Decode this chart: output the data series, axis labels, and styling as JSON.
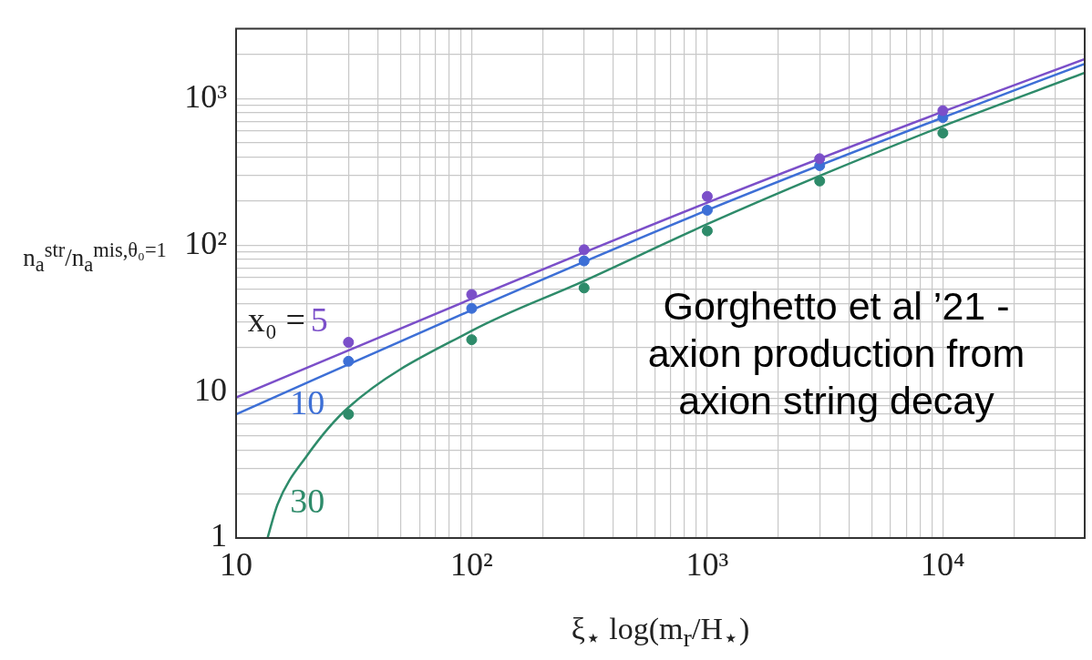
{
  "chart_data": {
    "type": "scatter",
    "xlabel": "ξ$_{⋆}$ log(m$_{r}$/H$_{⋆}$)",
    "ylabel": "n$_{a}$$^{str}$/n$_{a}$$^{mis,θ₀=1}$",
    "log": "xy",
    "grid": true,
    "legend": false,
    "marker": "circle",
    "xlim": [
      10,
      40000
    ],
    "ylim": [
      1,
      3000
    ],
    "xticks": [
      10,
      {
        "value": 20,
        "label": null
      },
      {
        "value": 30,
        "label": null
      },
      {
        "value": 40,
        "label": null
      },
      {
        "value": 50,
        "label": null
      },
      {
        "value": 60,
        "label": null
      },
      {
        "value": 70,
        "label": null
      },
      {
        "value": 80,
        "label": null
      },
      {
        "value": 90,
        "label": null
      },
      {
        "value": 100,
        "label": "10²"
      },
      {
        "value": 200,
        "label": null
      },
      {
        "value": 300,
        "label": null
      },
      {
        "value": 400,
        "label": null
      },
      {
        "value": 500,
        "label": null
      },
      {
        "value": 600,
        "label": null
      },
      {
        "value": 700,
        "label": null
      },
      {
        "value": 800,
        "label": null
      },
      {
        "value": 900,
        "label": null
      },
      {
        "value": 1000,
        "label": "10³"
      },
      {
        "value": 2000,
        "label": null
      },
      {
        "value": 3000,
        "label": null
      },
      {
        "value": 4000,
        "label": null
      },
      {
        "value": 5000,
        "label": null
      },
      {
        "value": 6000,
        "label": null
      },
      {
        "value": 7000,
        "label": null
      },
      {
        "value": 8000,
        "label": null
      },
      {
        "value": 9000,
        "label": null
      },
      {
        "value": 10000,
        "label": "10⁴"
      },
      {
        "value": 20000,
        "label": null
      },
      {
        "value": 30000,
        "label": null
      }
    ],
    "yticks": [
      1,
      {
        "value": 2,
        "label": null
      },
      {
        "value": 3,
        "label": null
      },
      {
        "value": 4,
        "label": null
      },
      {
        "value": 5,
        "label": null
      },
      {
        "value": 6,
        "label": null
      },
      {
        "value": 7,
        "label": null
      },
      {
        "value": 8,
        "label": null
      },
      {
        "value": 9,
        "label": null
      },
      10,
      {
        "value": 20,
        "label": null
      },
      {
        "value": 30,
        "label": null
      },
      {
        "value": 40,
        "label": null
      },
      {
        "value": 50,
        "label": null
      },
      {
        "value": 60,
        "label": null
      },
      {
        "value": 70,
        "label": null
      },
      {
        "value": 80,
        "label": null
      },
      {
        "value": 90,
        "label": null
      },
      {
        "value": 100,
        "label": "10²"
      },
      {
        "value": 200,
        "label": null
      },
      {
        "value": 300,
        "label": null
      },
      {
        "value": 400,
        "label": null
      },
      {
        "value": 500,
        "label": null
      },
      {
        "value": 600,
        "label": null
      },
      {
        "value": 700,
        "label": null
      },
      {
        "value": 800,
        "label": null
      },
      {
        "value": 900,
        "label": null
      },
      {
        "value": 1000,
        "label": "10³"
      },
      {
        "value": 2000,
        "label": null
      }
    ],
    "x": [
      30,
      100,
      300,
      1000,
      3000,
      10000
    ],
    "series": [
      {
        "type": "scatter",
        "color": "#7b4fc9",
        "values": [
          21.7,
          46,
          93,
          215,
          389,
          828
        ]
      },
      {
        "type": "scatter",
        "color": "#3d6fd6",
        "values": [
          16.1,
          37,
          78,
          173,
          349,
          743
        ]
      },
      {
        "type": "scatter",
        "color": "#2e8b6a",
        "values": [
          7.0,
          22.6,
          51,
          125,
          274,
          582
        ]
      },
      {
        "type": "line",
        "name": "5",
        "color": "#7b4fc9",
        "marker": "none",
        "x": [
          10,
          100,
          1000,
          10000,
          40000
        ],
        "values": [
          9.1,
          43,
          195,
          815,
          1860
        ]
      },
      {
        "type": "line",
        "name": "10",
        "color": "#3d6fd6",
        "marker": "none",
        "x": [
          10,
          100,
          1000,
          10000,
          40000
        ],
        "values": [
          7.0,
          36,
          173,
          743,
          1730
        ]
      },
      {
        "type": "line",
        "name": "30",
        "color": "#2e8b6a",
        "marker": "none",
        "x": [
          13.6,
          15,
          20,
          30,
          100,
          300,
          1000,
          3000,
          10000,
          40000
        ],
        "values": [
          1,
          1.7,
          3.65,
          7.8,
          26,
          57,
          139,
          297,
          649,
          1500
        ]
      }
    ],
    "annotations": [
      "x₀ =",
      "Gorghetto et al ’21 - axion production from axion string decay"
    ]
  }
}
